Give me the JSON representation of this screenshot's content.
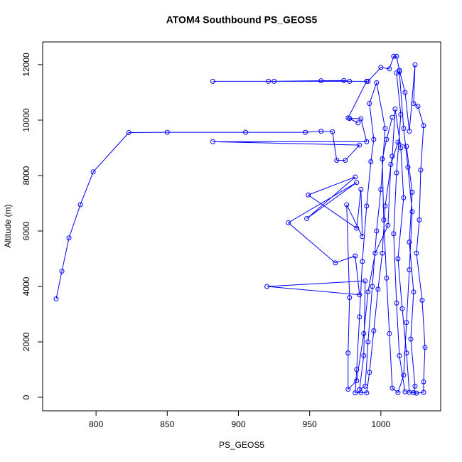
{
  "chart_data": {
    "type": "line",
    "title": "ATOM4 Southbound PS_GEOS5",
    "xlabel": "PS_GEOS5",
    "ylabel": "Altitude (m)",
    "color": "#0000ff",
    "markers": true,
    "xlim": [
      762.5,
      1042
    ],
    "ylim": [
      -487,
      12820
    ],
    "xticks": [
      800,
      850,
      900,
      950,
      1000
    ],
    "yticks": [
      0,
      2000,
      4000,
      6000,
      8000,
      10000,
      12000
    ],
    "x": [
      772,
      776,
      781,
      789,
      798,
      823,
      850,
      905,
      947,
      958,
      966,
      969,
      975,
      985,
      882,
      990,
      986,
      978,
      984,
      977,
      990,
      925,
      882,
      921,
      958,
      974,
      978,
      991,
      1000,
      1006,
      1009,
      1011,
      1013,
      1017,
      1020,
      1024,
      1023,
      1026,
      1030,
      1028,
      1027,
      1025,
      1029,
      1031,
      1030,
      1030,
      1025,
      1020,
      1018,
      1015,
      1012,
      1016,
      1014,
      1010,
      1008,
      1003,
      1001,
      998,
      995,
      992,
      990,
      986,
      982,
      983,
      985,
      987,
      990,
      993,
      995,
      992,
      997,
      1003,
      1000,
      997,
      994,
      991,
      989,
      985,
      988,
      989,
      920,
      985,
      982,
      968,
      935,
      983,
      948,
      982,
      949,
      983,
      986,
      987,
      976,
      978,
      977,
      977,
      983,
      988,
      991,
      996,
      1005,
      1007,
      1012,
      1018,
      1022,
      1020,
      1023,
      1021,
      1024,
      1023,
      1017,
      1013,
      1011,
      1009,
      1011,
      1014,
      1011,
      1013,
      1016,
      1019,
      1022,
      1020,
      1018,
      1016,
      1012,
      1008,
      1006,
      1004,
      1002,
      1001,
      1004,
      1008
    ],
    "values": [
      3550,
      4550,
      5750,
      6950,
      8130,
      9550,
      9560,
      9560,
      9560,
      9600,
      9580,
      8550,
      8550,
      9100,
      9220,
      9220,
      10050,
      10060,
      9900,
      10080,
      11400,
      11400,
      11400,
      11400,
      11420,
      11430,
      11400,
      11400,
      11900,
      11850,
      12300,
      12300,
      11800,
      11000,
      9600,
      12000,
      10600,
      10500,
      9800,
      8200,
      6400,
      5200,
      3500,
      1800,
      560,
      180,
      150,
      180,
      1600,
      3200,
      5000,
      7200,
      9000,
      10400,
      8700,
      6900,
      5200,
      3900,
      2400,
      900,
      160,
      170,
      160,
      1000,
      2900,
      4900,
      6900,
      8500,
      9300,
      10600,
      11350,
      9700,
      7500,
      6000,
      4000,
      2000,
      400,
      280,
      1500,
      4200,
      4000,
      3700,
      5100,
      4850,
      6300,
      7750,
      6450,
      7950,
      7300,
      6100,
      7500,
      5800,
      6950,
      3600,
      1600,
      290,
      600,
      2300,
      3800,
      5200,
      6200,
      8400,
      9200,
      9050,
      7400,
      5600,
      3800,
      2100,
      400,
      170,
      200,
      1500,
      3400,
      5900,
      8100,
      10200,
      11700,
      11750,
      9700,
      8300,
      6700,
      4600,
      2700,
      800,
      170,
      330,
      2300,
      4300,
      6400,
      8600,
      9300,
      10100
    ]
  }
}
